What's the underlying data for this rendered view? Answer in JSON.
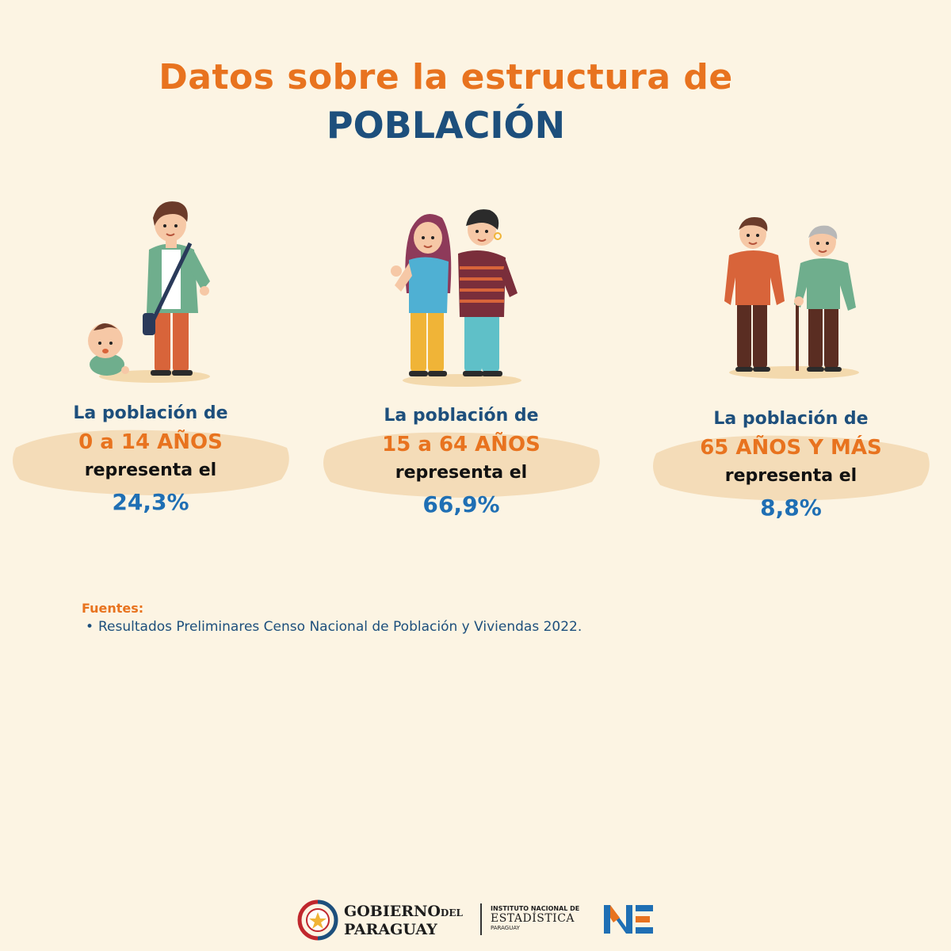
{
  "title": {
    "line1": "Datos sobre la estructura de",
    "line2": "POBLACIÓN"
  },
  "groups": [
    {
      "intro": "La población de",
      "range": "0 a 14 AÑOS",
      "verb": "representa el",
      "percent": "24,3%",
      "percent_value": 24.3
    },
    {
      "intro": "La población de",
      "range": "15 a 64 AÑOS",
      "verb": "representa el",
      "percent": "66,9%",
      "percent_value": 66.9
    },
    {
      "intro": "La población de",
      "range": "65 AÑOS Y MÁS",
      "verb": "representa el",
      "percent": "8,8%",
      "percent_value": 8.8
    }
  ],
  "sources": {
    "label": "Fuentes:",
    "items": [
      "Resultados Preliminares Censo Nacional de Población y Viviendas 2022."
    ]
  },
  "footer": {
    "gov_line1": "GOBIERNO",
    "gov_line1_small": "DEL",
    "gov_line2": "PARAGUAY",
    "ine_line1": "INSTITUTO NACIONAL DE",
    "ine_line2": "ESTADÍSTICA",
    "ine_line3": "PARAGUAY",
    "ine_logo": "INE"
  },
  "colors": {
    "background": "#fcf4e3",
    "orange": "#e8731f",
    "navy": "#1d4f7c",
    "blue": "#1f6fb4",
    "brush": "#f4dcb8"
  }
}
